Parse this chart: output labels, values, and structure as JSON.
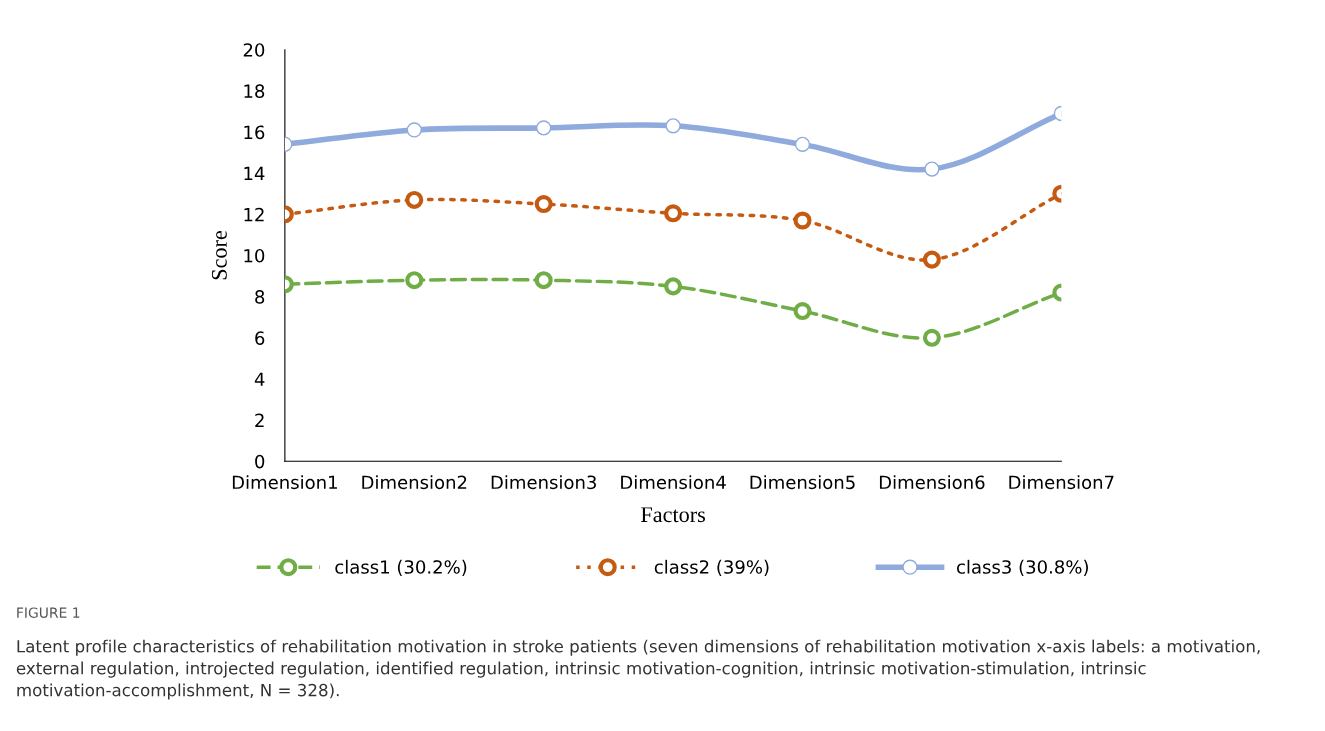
{
  "chart_data": {
    "type": "line",
    "xlabel": "Factors",
    "ylabel": "Score",
    "categories": [
      "Dimension1",
      "Dimension2",
      "Dimension3",
      "Dimension4",
      "Dimension5",
      "Dimension6",
      "Dimension7"
    ],
    "series": [
      {
        "name": "class1 (30.2%)",
        "color": "#70ad47",
        "line_style": "dashed",
        "values": [
          8.6,
          8.8,
          8.8,
          8.5,
          7.3,
          6.0,
          8.2
        ]
      },
      {
        "name": "class2 (39%)",
        "color": "#c55a11",
        "line_style": "dotted",
        "values": [
          12.0,
          12.7,
          12.5,
          12.05,
          11.7,
          9.8,
          13.0
        ]
      },
      {
        "name": "class3 (30.8%)",
        "color": "#8faadc",
        "line_style": "solid",
        "values": [
          15.4,
          16.1,
          16.2,
          16.3,
          15.4,
          14.2,
          16.9
        ]
      }
    ],
    "ylim": [
      0,
      20
    ],
    "yticks": [
      0,
      2,
      4,
      6,
      8,
      10,
      12,
      14,
      16,
      18,
      20
    ],
    "marker": "circle",
    "grid": false,
    "legend": "bottom",
    "annotations": [
      "FIGURE 1",
      "Latent profile characteristics of rehabilitation motivation in stroke patients (seven dimensions of rehabilitation motivation x-axis labels: a motivation,",
      "external regulation, introjected regulation, identified regulation, intrinsic motivation-cognition, intrinsic motivation-stimulation, intrinsic",
      "motivation-accomplishment, N = 328)."
    ]
  }
}
